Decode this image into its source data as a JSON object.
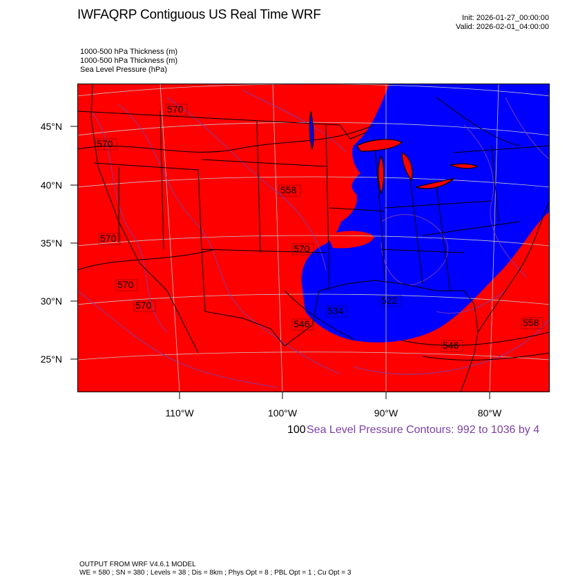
{
  "header": {
    "title": "IWFAQRP Contiguous US Real Time WRF",
    "init": "Init: 2026-01-27_00:00:00",
    "valid": "Valid: 2026-02-01_04:00:00"
  },
  "fields": [
    "1000-500 hPa Thickness   (m)",
    "1000-500 hPa Thickness   (m)",
    "Sea Level Pressure   (hPa)"
  ],
  "colors": {
    "warm_fill": "#ff0000",
    "cold_fill": "#0000ff",
    "slp_contour": "#7b3fa8",
    "border": "#000000"
  },
  "axes": {
    "lat_labels": [
      "45°N",
      "40°N",
      "35°N",
      "30°N",
      "25°N"
    ],
    "lon_labels": [
      "110°W",
      "100°W",
      "90°W",
      "80°W"
    ]
  },
  "thickness_labels": [
    {
      "text": "570"
    },
    {
      "text": "570"
    },
    {
      "text": "570"
    },
    {
      "text": "570"
    },
    {
      "text": "570"
    },
    {
      "text": "570"
    },
    {
      "text": "558"
    },
    {
      "text": "546"
    },
    {
      "text": "534"
    },
    {
      "text": "522"
    },
    {
      "text": "546"
    },
    {
      "text": "558"
    }
  ],
  "contour_info": {
    "overlapped": "100",
    "slp_text": "Sea Level Pressure Contours: 992 to 1036 by 4"
  },
  "footer": {
    "line1": "OUTPUT FROM WRF V4.6.1 MODEL",
    "line2": "WE = 580 ; SN = 380 ; Levels = 38 ; Dis = 8km ; Phys Opt = 8 ; PBL Opt = 1 ; Cu Opt = 3"
  }
}
